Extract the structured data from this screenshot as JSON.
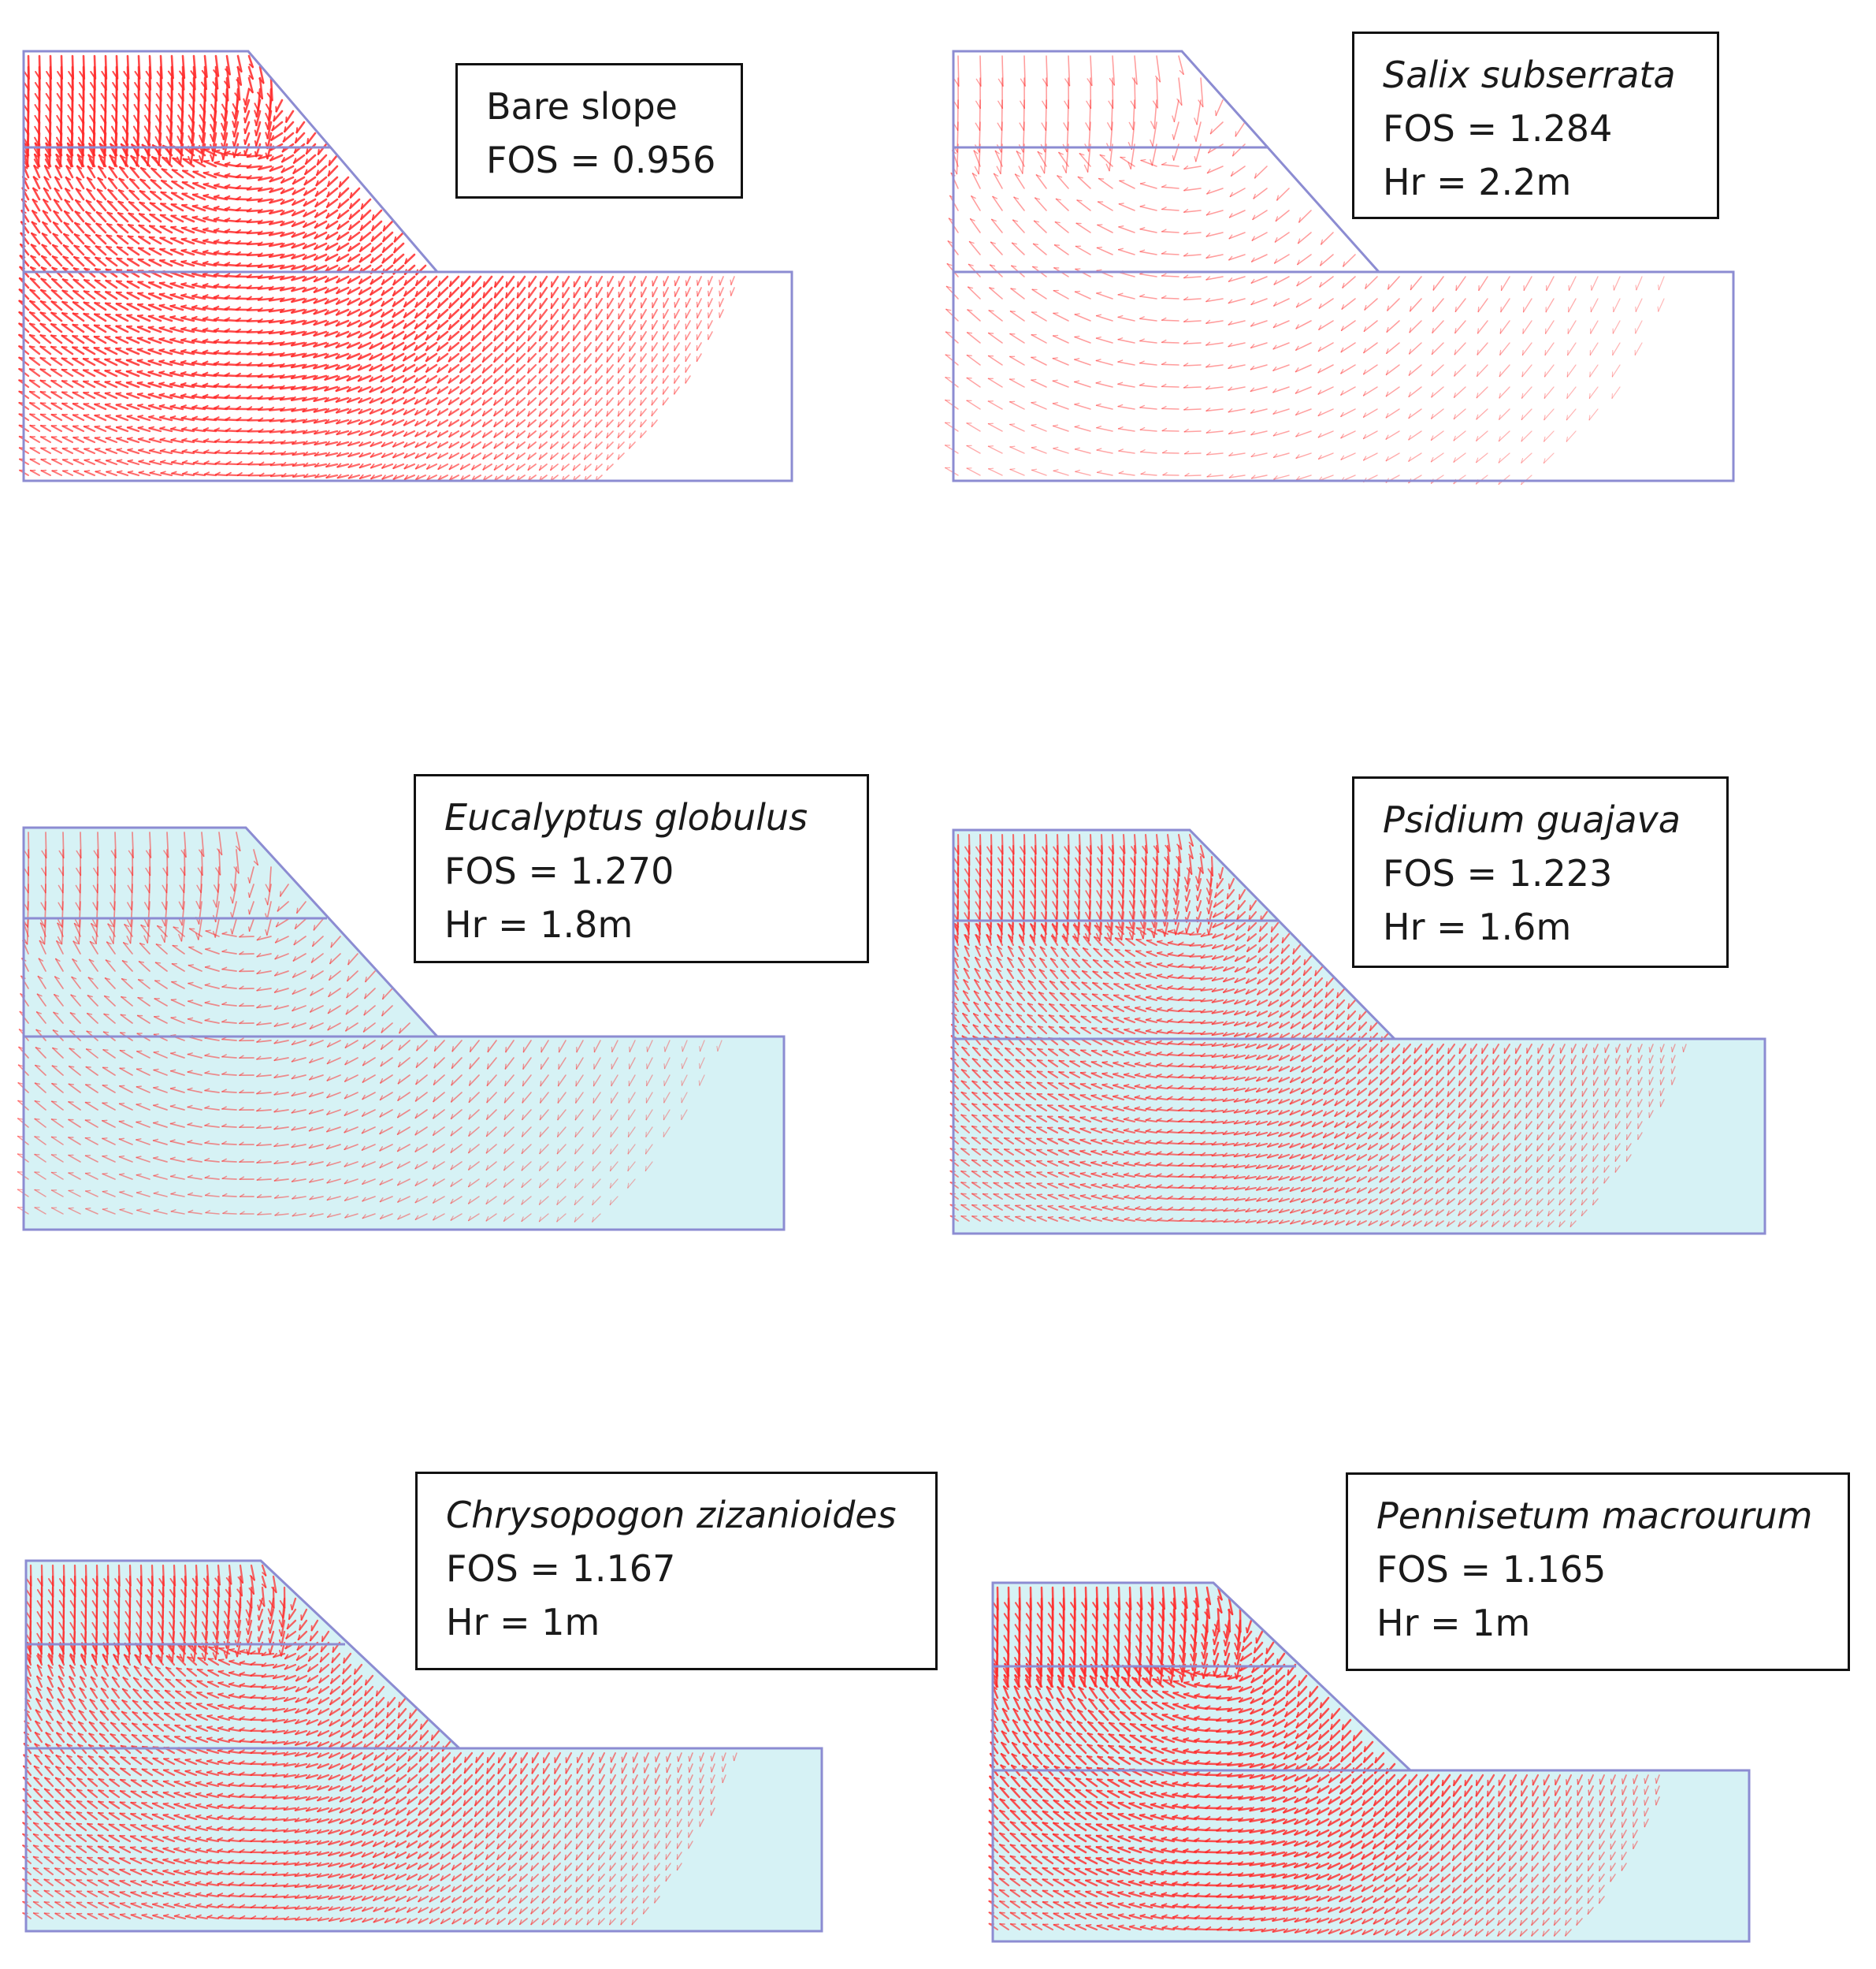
{
  "figure": {
    "colors": {
      "vector": "#ff2a2a",
      "outline": "#8c8cd2",
      "soil_fill_light": "#d6f2f5",
      "background": "#ffffff"
    },
    "panels": [
      {
        "id": "bare",
        "species": "Bare slope",
        "species_italic": false,
        "fos_text": "FOS = 0.956",
        "hr_text": null,
        "fos": 0.956,
        "hr_m": null,
        "vector_density": 1.0,
        "shaded_fill": false
      },
      {
        "id": "salix",
        "species": "Salix subserrata",
        "species_italic": true,
        "fos_text": "FOS = 1.284",
        "hr_text": "Hr = 2.2m",
        "fos": 1.284,
        "hr_m": 2.2,
        "vector_density": 0.35,
        "shaded_fill": false
      },
      {
        "id": "eucalyptus",
        "species": "Eucalyptus globulus",
        "species_italic": true,
        "fos_text": "FOS = 1.270",
        "hr_text": "Hr = 1.8m",
        "fos": 1.27,
        "hr_m": 1.8,
        "vector_density": 0.45,
        "shaded_fill": true
      },
      {
        "id": "psidium",
        "species": "Psidium guajava",
        "species_italic": true,
        "fos_text": "FOS = 1.223",
        "hr_text": "Hr = 1.6m",
        "fos": 1.223,
        "hr_m": 1.6,
        "vector_density": 0.7,
        "shaded_fill": true
      },
      {
        "id": "chrysopogon",
        "species": "Chrysopogon zizanioides",
        "species_italic": true,
        "fos_text": "FOS = 1.167",
        "hr_text": "Hr = 1m",
        "fos": 1.167,
        "hr_m": 1.0,
        "vector_density": 0.8,
        "shaded_fill": true
      },
      {
        "id": "pennisetum",
        "species": "Pennisetum macrourum",
        "species_italic": true,
        "fos_text": "FOS = 1.165",
        "hr_text": "Hr = 1m",
        "fos": 1.165,
        "hr_m": 1.0,
        "vector_density": 0.95,
        "shaded_fill": true
      }
    ]
  }
}
